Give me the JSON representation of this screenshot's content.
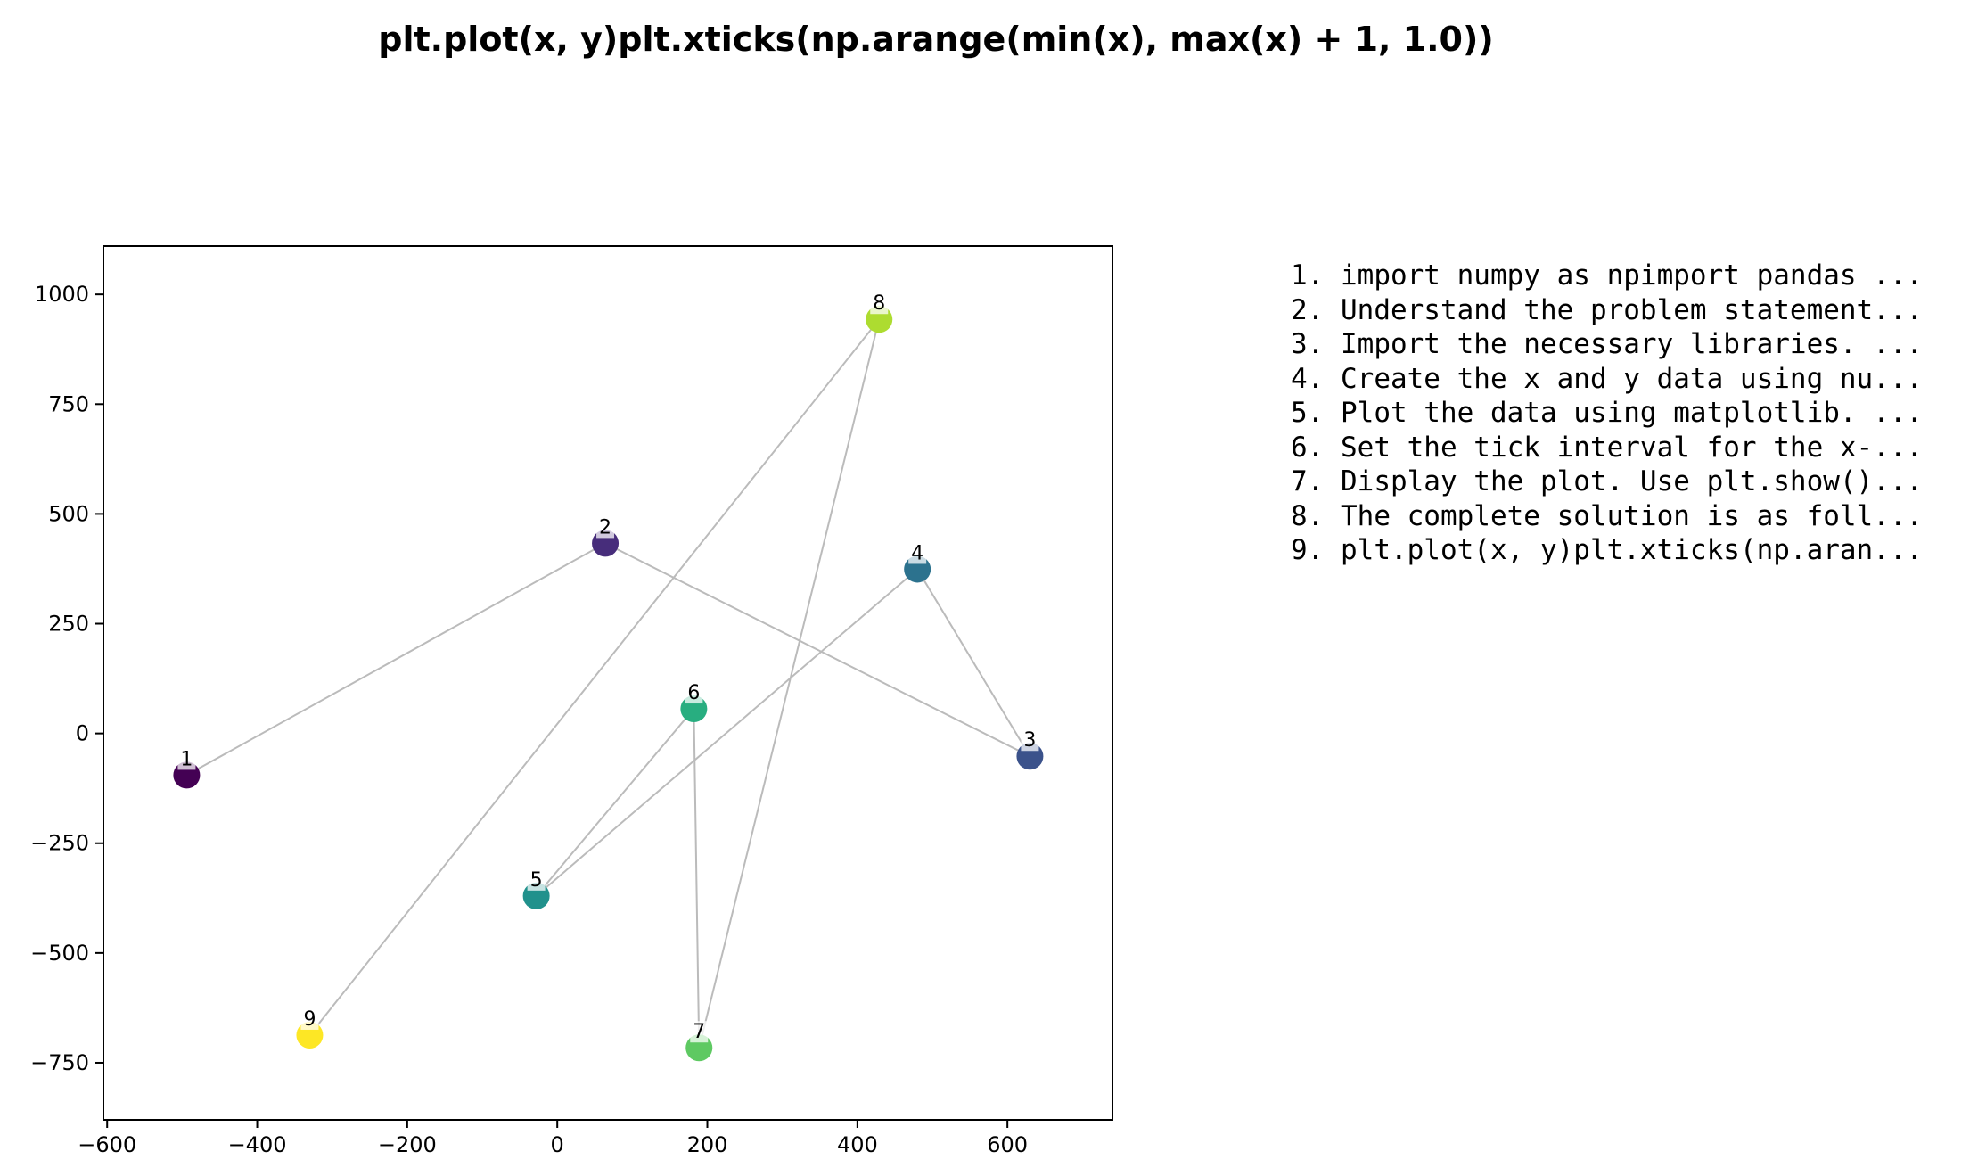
{
  "chart_data": {
    "type": "scatter",
    "title": "plt.plot(x, y)plt.xticks(np.arange(min(x), max(x) + 1, 1.0))",
    "xlabel": "",
    "ylabel": "",
    "xlim": [
      -605,
      740
    ],
    "ylim": [
      -880,
      1110
    ],
    "xticks": [
      -600,
      -400,
      -200,
      0,
      200,
      400,
      600
    ],
    "yticks": [
      -750,
      -500,
      -250,
      0,
      250,
      500,
      750,
      1000
    ],
    "xtick_labels": [
      "−600",
      "−400",
      "−200",
      "0",
      "200",
      "400",
      "600"
    ],
    "ytick_labels": [
      "−750",
      "−500",
      "−250",
      "0",
      "250",
      "500",
      "750",
      "1000"
    ],
    "grid": false,
    "connector_color": "#bbbbbb",
    "points": [
      {
        "label": "1",
        "x": -494,
        "y": -95,
        "color": "#440154"
      },
      {
        "label": "2",
        "x": 64,
        "y": 433,
        "color": "#472d7b"
      },
      {
        "label": "3",
        "x": 630,
        "y": -52,
        "color": "#3b528b"
      },
      {
        "label": "4",
        "x": 480,
        "y": 374,
        "color": "#2c728e"
      },
      {
        "label": "5",
        "x": -28,
        "y": -370,
        "color": "#21918c"
      },
      {
        "label": "6",
        "x": 182,
        "y": 56,
        "color": "#28ae80"
      },
      {
        "label": "7",
        "x": 189,
        "y": -716,
        "color": "#5ec962"
      },
      {
        "label": "8",
        "x": 429,
        "y": 943,
        "color": "#addc30"
      },
      {
        "label": "9",
        "x": -330,
        "y": -687,
        "color": "#fde725"
      }
    ]
  },
  "steps": [
    "1. import numpy as npimport pandas ...",
    "2. Understand the problem statement...",
    "3. Import the necessary libraries. ...",
    "4. Create the x and y data using nu...",
    "5. Plot the data using matplotlib. ...",
    "6. Set the tick interval for the x-...",
    "7. Display the plot. Use plt.show()...",
    "8. The complete solution is as foll...",
    "9. plt.plot(x, y)plt.xticks(np.aran..."
  ]
}
